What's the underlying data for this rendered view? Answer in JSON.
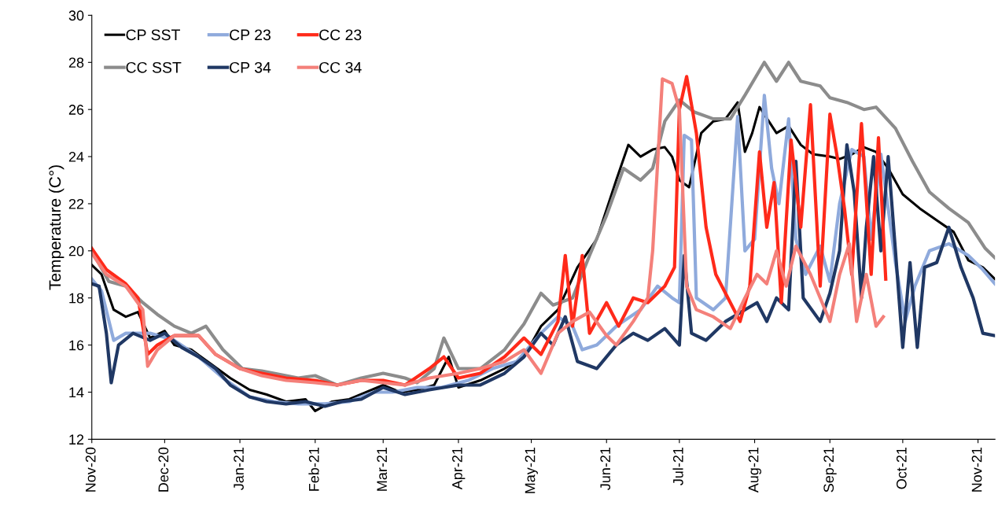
{
  "chart_data": {
    "type": "line",
    "ylabel": "Temperature (C°)",
    "ylim": [
      12,
      30
    ],
    "yticks": [
      12,
      14,
      16,
      18,
      20,
      22,
      24,
      26,
      28,
      30
    ],
    "xlim": [
      "2020-11-01",
      "2021-11-08"
    ],
    "xticks": [
      {
        "value": "2020-11-01",
        "label": "Nov-20"
      },
      {
        "value": "2020-12-01",
        "label": "Dec-20"
      },
      {
        "value": "2021-01-01",
        "label": "Jan-21"
      },
      {
        "value": "2021-02-01",
        "label": "Feb-21"
      },
      {
        "value": "2021-03-01",
        "label": "Mar-21"
      },
      {
        "value": "2021-04-01",
        "label": "Apr-21"
      },
      {
        "value": "2021-05-01",
        "label": "May-21"
      },
      {
        "value": "2021-06-01",
        "label": "Jun-21"
      },
      {
        "value": "2021-07-01",
        "label": "Jul-21"
      },
      {
        "value": "2021-08-01",
        "label": "Aug-21"
      },
      {
        "value": "2021-09-01",
        "label": "Sep-21"
      },
      {
        "value": "2021-10-01",
        "label": "Oct-21"
      },
      {
        "value": "2021-11-01",
        "label": "Nov-21"
      }
    ],
    "grid": false,
    "legend": "top left",
    "marker": "none",
    "line_style": "solid",
    "series": [
      {
        "name": "CP SST",
        "color": "#000000",
        "x": [
          "2020-11-01",
          "2020-11-05",
          "2020-11-10",
          "2020-11-15",
          "2020-11-20",
          "2020-11-25",
          "2020-12-01",
          "2020-12-05",
          "2020-12-12",
          "2020-12-20",
          "2020-12-28",
          "2021-01-05",
          "2021-01-12",
          "2021-01-20",
          "2021-01-28",
          "2021-02-01",
          "2021-02-08",
          "2021-02-15",
          "2021-02-22",
          "2021-03-01",
          "2021-03-08",
          "2021-03-15",
          "2021-03-22",
          "2021-03-28",
          "2021-04-01",
          "2021-04-10",
          "2021-04-20",
          "2021-04-28",
          "2021-05-05",
          "2021-05-12",
          "2021-05-20",
          "2021-05-28",
          "2021-06-05",
          "2021-06-10",
          "2021-06-15",
          "2021-06-20",
          "2021-06-25",
          "2021-06-28",
          "2021-07-01",
          "2021-07-05",
          "2021-07-10",
          "2021-07-15",
          "2021-07-20",
          "2021-07-25",
          "2021-07-28",
          "2021-07-31",
          "2021-08-03",
          "2021-08-10",
          "2021-08-15",
          "2021-08-20",
          "2021-08-25",
          "2021-09-01",
          "2021-09-05",
          "2021-09-10",
          "2021-09-15",
          "2021-09-20",
          "2021-09-25",
          "2021-10-01",
          "2021-10-08",
          "2021-10-15",
          "2021-10-22",
          "2021-10-28",
          "2021-11-03",
          "2021-11-08"
        ],
        "values": [
          19.4,
          19.0,
          17.5,
          17.2,
          17.4,
          16.3,
          16.6,
          16.0,
          15.8,
          15.2,
          14.6,
          14.1,
          13.9,
          13.6,
          13.7,
          13.2,
          13.6,
          13.7,
          14.0,
          14.3,
          14.0,
          14.1,
          14.3,
          15.5,
          14.2,
          14.5,
          15.0,
          15.5,
          16.8,
          17.5,
          19.3,
          20.5,
          23.0,
          24.5,
          24.0,
          24.3,
          24.4,
          24.0,
          23.0,
          22.7,
          25.0,
          25.5,
          25.6,
          26.3,
          24.2,
          25.0,
          26.1,
          25.0,
          25.3,
          24.5,
          24.1,
          24.0,
          23.9,
          24.1,
          24.4,
          24.2,
          23.5,
          22.4,
          21.8,
          21.3,
          20.8,
          19.6,
          19.3,
          18.8
        ]
      },
      {
        "name": "CC SST",
        "color": "#8c8c8c",
        "x": [
          "2020-11-01",
          "2020-11-08",
          "2020-11-15",
          "2020-11-22",
          "2020-11-28",
          "2020-12-05",
          "2020-12-12",
          "2020-12-18",
          "2020-12-25",
          "2021-01-02",
          "2021-01-10",
          "2021-01-15",
          "2021-01-25",
          "2021-02-01",
          "2021-02-10",
          "2021-02-20",
          "2021-03-01",
          "2021-03-10",
          "2021-03-15",
          "2021-03-22",
          "2021-03-26",
          "2021-04-01",
          "2021-04-10",
          "2021-04-20",
          "2021-04-28",
          "2021-05-05",
          "2021-05-10",
          "2021-05-18",
          "2021-05-25",
          "2021-06-01",
          "2021-06-08",
          "2021-06-15",
          "2021-06-20",
          "2021-06-25",
          "2021-07-01",
          "2021-07-07",
          "2021-07-15",
          "2021-07-22",
          "2021-07-28",
          "2021-08-05",
          "2021-08-10",
          "2021-08-15",
          "2021-08-20",
          "2021-08-28",
          "2021-09-01",
          "2021-09-08",
          "2021-09-15",
          "2021-09-20",
          "2021-09-28",
          "2021-10-05",
          "2021-10-12",
          "2021-10-20",
          "2021-10-28",
          "2021-11-04",
          "2021-11-08"
        ],
        "values": [
          20.0,
          18.7,
          18.5,
          17.8,
          17.3,
          16.8,
          16.5,
          16.8,
          15.8,
          15.0,
          14.9,
          14.8,
          14.6,
          14.7,
          14.3,
          14.6,
          14.8,
          14.6,
          14.4,
          15.0,
          16.3,
          15.0,
          15.0,
          15.8,
          16.9,
          18.2,
          17.7,
          18.0,
          19.8,
          21.5,
          23.5,
          23.0,
          23.5,
          25.5,
          26.4,
          25.9,
          25.6,
          25.6,
          26.6,
          28.0,
          27.2,
          28.0,
          27.2,
          27.0,
          26.5,
          26.3,
          26.0,
          26.1,
          25.2,
          23.8,
          22.5,
          21.8,
          21.2,
          20.1,
          19.7
        ]
      },
      {
        "name": "CP 23",
        "color": "#8faadc",
        "x": [
          "2020-11-01",
          "2020-11-05",
          "2020-11-10",
          "2020-11-15",
          "2020-11-25",
          "2020-12-05",
          "2020-12-15",
          "2020-12-25",
          "2021-01-05",
          "2021-01-15",
          "2021-01-25",
          "2021-02-05",
          "2021-02-15",
          "2021-02-25",
          "2021-03-05",
          "2021-03-15",
          "2021-03-25",
          "2021-04-05",
          "2021-04-15",
          "2021-04-25",
          "2021-05-05",
          "2021-05-12",
          "2021-05-18",
          "2021-05-22",
          "2021-05-28",
          "2021-06-05",
          "2021-06-15",
          "2021-06-22",
          "2021-06-28",
          "2021-07-01",
          "2021-07-03",
          "2021-07-06",
          "2021-07-08",
          "2021-07-15",
          "2021-07-20",
          "2021-07-25",
          "2021-07-28",
          "2021-08-01",
          "2021-08-05",
          "2021-08-08",
          "2021-08-11",
          "2021-08-15",
          "2021-08-18",
          "2021-08-22",
          "2021-08-28",
          "2021-09-01",
          "2021-09-05",
          "2021-09-10",
          "2021-09-15",
          "2021-09-18",
          "2021-09-22",
          "2021-09-28",
          "2021-10-02",
          "2021-10-06",
          "2021-10-12",
          "2021-10-20",
          "2021-10-28",
          "2021-11-03",
          "2021-11-08"
        ],
        "values": [
          18.8,
          18.3,
          16.2,
          16.5,
          16.5,
          16.2,
          15.5,
          14.6,
          13.8,
          13.6,
          13.5,
          13.5,
          13.6,
          14.0,
          14.0,
          14.2,
          14.2,
          14.5,
          15.0,
          15.3,
          16.5,
          17.2,
          16.8,
          15.8,
          16.0,
          16.8,
          17.5,
          18.5,
          18.0,
          17.8,
          24.9,
          24.7,
          18.0,
          17.5,
          18.0,
          25.7,
          20.0,
          20.5,
          26.6,
          23.5,
          22.0,
          25.6,
          20.5,
          19.0,
          20.2,
          18.7,
          22.0,
          24.3,
          24.0,
          20.5,
          24.1,
          19.5,
          17.0,
          18.5,
          20.0,
          20.3,
          19.8,
          19.2,
          18.6
        ]
      },
      {
        "name": "CP 34",
        "color": "#203864",
        "x": [
          "2020-11-01",
          "2020-11-04",
          "2020-11-07",
          "2020-11-09",
          "2020-11-12",
          "2020-11-18",
          "2020-11-25",
          "2020-12-01",
          "2020-12-08",
          "2020-12-15",
          "2020-12-22",
          "2020-12-28",
          "2021-01-05",
          "2021-01-12",
          "2021-01-20",
          "2021-01-28",
          "2021-02-05",
          "2021-02-12",
          "2021-02-20",
          "2021-03-01",
          "2021-03-10",
          "2021-03-20",
          "2021-04-01",
          "2021-04-10",
          "2021-04-20",
          "2021-04-28",
          "2021-05-05",
          "2021-05-10",
          "2021-05-15",
          "2021-05-20",
          "2021-05-28",
          "2021-06-05",
          "2021-06-12",
          "2021-06-18",
          "2021-06-25",
          "2021-07-01",
          "2021-07-03",
          "2021-07-06",
          "2021-07-12",
          "2021-07-20",
          "2021-07-28",
          "2021-08-02",
          "2021-08-06",
          "2021-08-10",
          "2021-08-15",
          "2021-08-18",
          "2021-08-21",
          "2021-08-28",
          "2021-09-01",
          "2021-09-05",
          "2021-09-08",
          "2021-09-11",
          "2021-09-14",
          "2021-09-16",
          "2021-09-19",
          "2021-09-22",
          "2021-09-25",
          "2021-09-28",
          "2021-10-01",
          "2021-10-04",
          "2021-10-07",
          "2021-10-10",
          "2021-10-15",
          "2021-10-20",
          "2021-10-25",
          "2021-10-30",
          "2021-11-03",
          "2021-11-08"
        ],
        "values": [
          18.6,
          18.5,
          16.5,
          14.4,
          16.0,
          16.5,
          16.2,
          16.5,
          15.9,
          15.5,
          15.0,
          14.3,
          13.8,
          13.6,
          13.5,
          13.6,
          13.4,
          13.6,
          13.7,
          14.2,
          13.9,
          14.1,
          14.3,
          14.3,
          14.8,
          15.5,
          16.5,
          16.0,
          17.2,
          15.3,
          15.0,
          16.0,
          16.5,
          16.2,
          16.7,
          16.0,
          19.8,
          16.5,
          16.2,
          17.0,
          17.5,
          17.8,
          17.0,
          18.0,
          17.5,
          23.8,
          18.0,
          17.0,
          18.2,
          20.0,
          24.5,
          22.5,
          18.0,
          21.0,
          24.0,
          20.0,
          24.0,
          20.0,
          15.9,
          19.5,
          15.9,
          19.3,
          19.5,
          21.0,
          19.3,
          18.0,
          16.5,
          16.4
        ]
      },
      {
        "name": "CC 23",
        "color": "#ff2a1a",
        "x": [
          "2020-11-01",
          "2020-11-07",
          "2020-11-15",
          "2020-11-20",
          "2020-11-24",
          "2020-11-28",
          "2020-12-05",
          "2020-12-15",
          "2020-12-22",
          "2021-01-01",
          "2021-01-10",
          "2021-01-20",
          "2021-02-01",
          "2021-02-10",
          "2021-02-20",
          "2021-03-01",
          "2021-03-10",
          "2021-03-20",
          "2021-03-26",
          "2021-04-01",
          "2021-04-10",
          "2021-04-20",
          "2021-04-28",
          "2021-05-05",
          "2021-05-12",
          "2021-05-15",
          "2021-05-18",
          "2021-05-22",
          "2021-05-25",
          "2021-06-01",
          "2021-06-06",
          "2021-06-12",
          "2021-06-18",
          "2021-06-25",
          "2021-06-29",
          "2021-07-01",
          "2021-07-04",
          "2021-07-08",
          "2021-07-12",
          "2021-07-16",
          "2021-07-22",
          "2021-07-26",
          "2021-07-30",
          "2021-08-03",
          "2021-08-06",
          "2021-08-09",
          "2021-08-12",
          "2021-08-16",
          "2021-08-20",
          "2021-08-24",
          "2021-08-28",
          "2021-09-01",
          "2021-09-04",
          "2021-09-07",
          "2021-09-10",
          "2021-09-14",
          "2021-09-18",
          "2021-09-21",
          "2021-09-24"
        ],
        "values": [
          20.1,
          19.2,
          18.6,
          18.0,
          15.6,
          16.0,
          16.4,
          16.4,
          15.6,
          15.0,
          14.8,
          14.6,
          14.5,
          14.3,
          14.5,
          14.5,
          14.3,
          15.0,
          15.5,
          14.6,
          14.8,
          15.5,
          16.3,
          15.6,
          17.0,
          19.8,
          16.8,
          19.8,
          16.5,
          17.8,
          16.8,
          18.0,
          17.8,
          18.5,
          19.3,
          26.0,
          27.4,
          25.0,
          21.0,
          19.0,
          17.8,
          17.0,
          18.5,
          24.2,
          21.0,
          22.9,
          17.8,
          24.7,
          21.0,
          26.2,
          18.5,
          25.8,
          24.0,
          21.8,
          19.0,
          25.4,
          19.0,
          24.8,
          18.8
        ]
      },
      {
        "name": "CC 34",
        "color": "#f4807a",
        "x": [
          "2020-11-01",
          "2020-11-07",
          "2020-11-15",
          "2020-11-22",
          "2020-11-24",
          "2020-11-28",
          "2020-12-05",
          "2020-12-15",
          "2020-12-22",
          "2021-01-01",
          "2021-01-10",
          "2021-01-20",
          "2021-02-01",
          "2021-02-10",
          "2021-02-20",
          "2021-03-01",
          "2021-03-10",
          "2021-03-20",
          "2021-04-01",
          "2021-04-10",
          "2021-04-20",
          "2021-04-28",
          "2021-05-05",
          "2021-05-12",
          "2021-05-18",
          "2021-05-25",
          "2021-06-01",
          "2021-06-05",
          "2021-06-12",
          "2021-06-18",
          "2021-06-20",
          "2021-06-24",
          "2021-06-28",
          "2021-07-01",
          "2021-07-04",
          "2021-07-08",
          "2021-07-15",
          "2021-07-22",
          "2021-07-28",
          "2021-08-02",
          "2021-08-06",
          "2021-08-10",
          "2021-08-14",
          "2021-08-18",
          "2021-08-24",
          "2021-08-28",
          "2021-09-01",
          "2021-09-05",
          "2021-09-09",
          "2021-09-12",
          "2021-09-16",
          "2021-09-20",
          "2021-09-23"
        ],
        "values": [
          19.9,
          19.0,
          18.5,
          17.5,
          15.1,
          15.8,
          16.4,
          16.4,
          15.6,
          15.0,
          14.7,
          14.5,
          14.4,
          14.3,
          14.5,
          14.4,
          14.3,
          14.6,
          14.8,
          15.0,
          15.3,
          15.8,
          14.8,
          16.5,
          17.0,
          17.4,
          16.4,
          16.0,
          17.0,
          18.0,
          20.0,
          27.3,
          27.1,
          26.0,
          18.5,
          17.5,
          17.2,
          16.7,
          18.0,
          19.0,
          18.6,
          20.0,
          18.5,
          20.2,
          19.0,
          18.0,
          17.0,
          19.0,
          20.3,
          17.0,
          19.0,
          16.8,
          17.2
        ]
      }
    ]
  }
}
